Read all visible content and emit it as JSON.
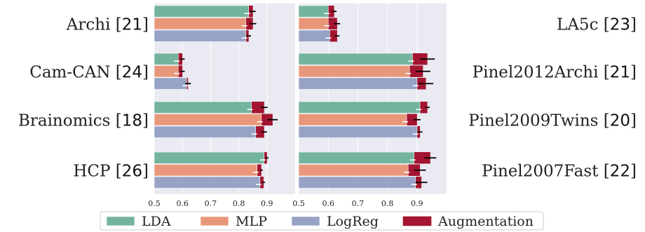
{
  "chart_data": {
    "type": "bar",
    "orientation": "horizontal",
    "xlim": [
      0.5,
      1.0
    ],
    "xticks": [
      "0.5",
      "0.6",
      "0.7",
      "0.8",
      "0.9"
    ],
    "grid": true,
    "legend_placement": "bottom",
    "colors": {
      "LDA": "#74b49e",
      "MLP": "#e8977a",
      "LogReg": "#97a3c5",
      "Augmentation": "#a31530",
      "error": "#000000",
      "panel_bg": "#eaeaf2"
    },
    "legend": [
      "LDA",
      "MLP",
      "LogReg",
      "Augmentation"
    ],
    "panels": [
      {
        "side": "left",
        "groups": [
          {
            "name": "Archi",
            "ref": "21",
            "bars": [
              {
                "series": "LDA",
                "value": 0.835,
                "aug": 0.85,
                "err": 0.01
              },
              {
                "series": "MLP",
                "value": 0.825,
                "aug": 0.85,
                "err": 0.012
              },
              {
                "series": "LogReg",
                "value": 0.825,
                "aug": 0.835,
                "err": 0.008
              }
            ]
          },
          {
            "name": "Cam-CAN",
            "ref": "24",
            "bars": [
              {
                "series": "LDA",
                "value": 0.585,
                "aug": 0.6,
                "err": 0.008
              },
              {
                "series": "MLP",
                "value": 0.585,
                "aug": 0.6,
                "err": 0.008
              },
              {
                "series": "LogReg",
                "value": 0.615,
                "aug": 0.62,
                "err": 0.01
              }
            ]
          },
          {
            "name": "Brainomics",
            "ref": "18",
            "bars": [
              {
                "series": "LDA",
                "value": 0.845,
                "aug": 0.89,
                "err": 0.012
              },
              {
                "series": "MLP",
                "value": 0.88,
                "aug": 0.92,
                "err": 0.018
              },
              {
                "series": "LogReg",
                "value": 0.86,
                "aug": 0.89,
                "err": 0.01
              }
            ]
          },
          {
            "name": "HCP",
            "ref": "26",
            "bars": [
              {
                "series": "LDA",
                "value": 0.89,
                "aug": 0.9,
                "err": 0.005
              },
              {
                "series": "MLP",
                "value": 0.865,
                "aug": 0.88,
                "err": 0.005
              },
              {
                "series": "LogReg",
                "value": 0.875,
                "aug": 0.888,
                "err": 0.005
              }
            ]
          }
        ]
      },
      {
        "side": "right",
        "groups": [
          {
            "name": "LA5c",
            "ref": "23",
            "bars": [
              {
                "series": "LDA",
                "value": 0.6,
                "aug": 0.62,
                "err": 0.008
              },
              {
                "series": "MLP",
                "value": 0.6,
                "aug": 0.63,
                "err": 0.01
              },
              {
                "series": "LogReg",
                "value": 0.605,
                "aug": 0.63,
                "err": 0.008
              }
            ]
          },
          {
            "name": "Pinel2012Archi",
            "ref": "21",
            "bars": [
              {
                "series": "LDA",
                "value": 0.885,
                "aug": 0.935,
                "err": 0.025
              },
              {
                "series": "MLP",
                "value": 0.875,
                "aug": 0.92,
                "err": 0.025
              },
              {
                "series": "LogReg",
                "value": 0.9,
                "aug": 0.93,
                "err": 0.025
              }
            ]
          },
          {
            "name": "Pinel2009Twins",
            "ref": "20",
            "bars": [
              {
                "series": "LDA",
                "value": 0.91,
                "aug": 0.935,
                "err": 0.008
              },
              {
                "series": "MLP",
                "value": 0.865,
                "aug": 0.9,
                "err": 0.012
              },
              {
                "series": "LogReg",
                "value": 0.9,
                "aug": 0.91,
                "err": 0.008
              }
            ]
          },
          {
            "name": "Pinel2007Fast",
            "ref": "22",
            "bars": [
              {
                "series": "LDA",
                "value": 0.89,
                "aug": 0.945,
                "err": 0.02
              },
              {
                "series": "MLP",
                "value": 0.87,
                "aug": 0.91,
                "err": 0.02
              },
              {
                "series": "LogReg",
                "value": 0.895,
                "aug": 0.915,
                "err": 0.02
              }
            ]
          }
        ]
      }
    ]
  }
}
